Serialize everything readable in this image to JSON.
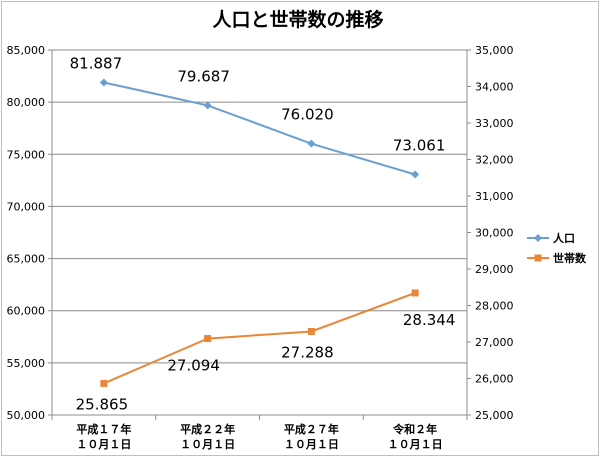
{
  "chart_data": {
    "type": "line",
    "title": "人口と世帯数の推移",
    "categories": [
      [
        "平成１７年",
        "１０月１日"
      ],
      [
        "平成２２年",
        "１０月１日"
      ],
      [
        "平成２７年",
        "１０月１日"
      ],
      [
        "令和２年",
        "１０月１日"
      ]
    ],
    "series": [
      {
        "name": "人口",
        "axis": "left",
        "color": "#6a9fd0",
        "marker": "diamond",
        "values": [
          81887,
          79687,
          76020,
          73061
        ],
        "labels": [
          "81.887",
          "79.687",
          "76.020",
          "73.061"
        ]
      },
      {
        "name": "世帯数",
        "axis": "right",
        "color": "#e8873a",
        "marker": "square",
        "values": [
          25865,
          27094,
          27288,
          28344
        ],
        "labels": [
          "25.865",
          "27.094",
          "27.288",
          "28.344"
        ]
      }
    ],
    "y_left": {
      "min": 50000,
      "max": 85000,
      "step": 5000,
      "ticks": [
        "50,000",
        "55,000",
        "60,000",
        "65,000",
        "70,000",
        "75,000",
        "80,000",
        "85,000"
      ]
    },
    "y_right": {
      "min": 25000,
      "max": 35000,
      "step": 1000,
      "ticks": [
        "25,000",
        "26,000",
        "27,000",
        "28,000",
        "29,000",
        "30,000",
        "31,000",
        "32,000",
        "33,000",
        "34,000",
        "35,000"
      ]
    },
    "grid": "horizontal",
    "legend": "right"
  }
}
